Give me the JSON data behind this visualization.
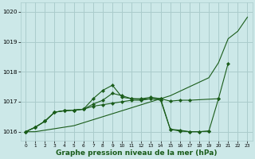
{
  "xlabel": "Graphe pression niveau de la mer (hPa)",
  "bg_color": "#cce8e8",
  "grid_color": "#aacccc",
  "line_color": "#1a5c1a",
  "ylim": [
    1015.7,
    1020.3
  ],
  "xlim": [
    -0.5,
    23.5
  ],
  "yticks": [
    1016,
    1017,
    1018,
    1019,
    1020
  ],
  "xticks": [
    0,
    1,
    2,
    3,
    4,
    5,
    6,
    7,
    8,
    9,
    10,
    11,
    12,
    13,
    14,
    15,
    16,
    17,
    18,
    19,
    20,
    21,
    22,
    23
  ],
  "series_no_marker": [
    1016.0,
    1016.0,
    1016.05,
    1016.1,
    1016.15,
    1016.2,
    1016.3,
    1016.4,
    1016.5,
    1016.6,
    1016.7,
    1016.8,
    1016.9,
    1017.0,
    1017.1,
    1017.2,
    1017.35,
    1017.5,
    1017.65,
    1017.8,
    1018.3,
    1019.1,
    1019.35,
    1019.82
  ],
  "series1": [
    1016.0,
    1016.15,
    1016.35,
    1016.65,
    1016.7,
    1016.72,
    1016.75,
    1017.1,
    1017.38,
    1017.55,
    1017.15,
    1017.1,
    1017.1,
    1017.15,
    1017.1,
    1017.02,
    1017.05,
    1017.05,
    null,
    null,
    1017.1,
    null,
    null,
    null
  ],
  "series2": [
    1016.0,
    1016.15,
    1016.35,
    1016.65,
    1016.7,
    1016.72,
    1016.75,
    1016.92,
    1017.05,
    1017.28,
    1017.2,
    1017.1,
    1017.08,
    1017.1,
    1017.05,
    1016.08,
    1016.05,
    1016.0,
    1016.0,
    1016.02,
    1017.1,
    1018.28,
    null,
    null
  ],
  "series3": [
    1016.0,
    1016.15,
    1016.35,
    1016.65,
    1016.7,
    1016.72,
    1016.75,
    1016.85,
    1016.9,
    1016.95,
    1017.0,
    1017.05,
    1017.05,
    1017.1,
    1017.1,
    1016.08,
    1016.02,
    1016.0,
    1016.0,
    1016.02,
    null,
    null,
    null,
    null
  ]
}
